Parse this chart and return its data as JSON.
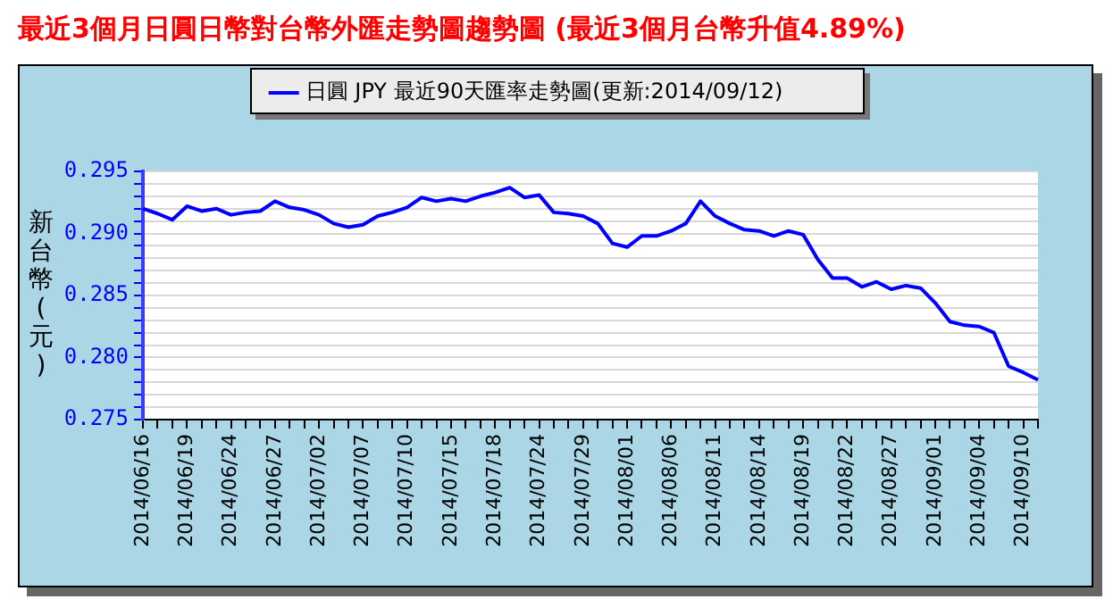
{
  "chart_data": {
    "type": "line",
    "title": "最近3個月日圓日幣對台幣外匯走勢圖趨勢圖 (最近3個月台幣升值4.89%)",
    "ylabel": "新台幣(元)",
    "categories": [
      "2014/06/16",
      null,
      null,
      "2014/06/19",
      null,
      null,
      "2014/06/24",
      null,
      null,
      "2014/06/27",
      null,
      null,
      "2014/07/02",
      null,
      null,
      "2014/07/07",
      null,
      null,
      "2014/07/10",
      null,
      null,
      "2014/07/15",
      null,
      null,
      "2014/07/18",
      null,
      null,
      "2014/07/24",
      null,
      null,
      "2014/07/29",
      null,
      null,
      "2014/08/01",
      null,
      null,
      "2014/08/06",
      null,
      null,
      "2014/08/11",
      null,
      null,
      "2014/08/14",
      null,
      null,
      "2014/08/19",
      null,
      null,
      "2014/08/22",
      null,
      null,
      "2014/08/27",
      null,
      null,
      "2014/09/01",
      null,
      null,
      "2014/09/04",
      null,
      null,
      "2014/09/10",
      null
    ],
    "series": [
      {
        "name": "日圓 JPY 最近90天匯率走勢圖(更新:2014/09/12)",
        "color": "#0000ff",
        "values": [
          0.292,
          0.2916,
          0.2911,
          0.2922,
          0.2918,
          0.292,
          0.2915,
          0.2917,
          0.2918,
          0.2926,
          0.2921,
          0.2919,
          0.2915,
          0.2908,
          0.2905,
          0.2907,
          0.2914,
          0.2917,
          0.2921,
          0.2929,
          0.2926,
          0.2928,
          0.2926,
          0.293,
          0.2933,
          0.2937,
          0.2929,
          0.2931,
          0.2917,
          0.2916,
          0.2914,
          0.2908,
          0.2892,
          0.2889,
          0.2898,
          0.2898,
          0.2902,
          0.2908,
          0.2926,
          0.2914,
          0.2908,
          0.2903,
          0.2902,
          0.2898,
          0.2902,
          0.2899,
          0.2879,
          0.2864,
          0.2864,
          0.2857,
          0.2861,
          0.2855,
          0.2858,
          0.2856,
          0.2844,
          0.2829,
          0.2826,
          0.2825,
          0.282,
          0.2793,
          0.2788,
          0.2782
        ]
      }
    ],
    "ylim": [
      0.275,
      0.295
    ],
    "yticks": [
      0.275,
      {
        "value": 0.276,
        "label": null
      },
      {
        "value": 0.277,
        "label": null
      },
      {
        "value": 0.278,
        "label": null
      },
      {
        "value": 0.279,
        "label": null
      },
      {
        "value": 0.28,
        "label": "0.280"
      },
      {
        "value": 0.281,
        "label": null
      },
      {
        "value": 0.282,
        "label": null
      },
      {
        "value": 0.283,
        "label": null
      },
      {
        "value": 0.284,
        "label": null
      },
      0.285,
      {
        "value": 0.286,
        "label": null
      },
      {
        "value": 0.287,
        "label": null
      },
      {
        "value": 0.288,
        "label": null
      },
      {
        "value": 0.289,
        "label": null
      },
      {
        "value": 0.29,
        "label": "0.290"
      },
      {
        "value": 0.291,
        "label": null
      },
      {
        "value": 0.292,
        "label": null
      },
      {
        "value": 0.293,
        "label": null
      },
      {
        "value": 0.294,
        "label": null
      },
      0.295
    ],
    "grid": "y",
    "legend": "top",
    "marker": "none",
    "line_style": "solid"
  }
}
